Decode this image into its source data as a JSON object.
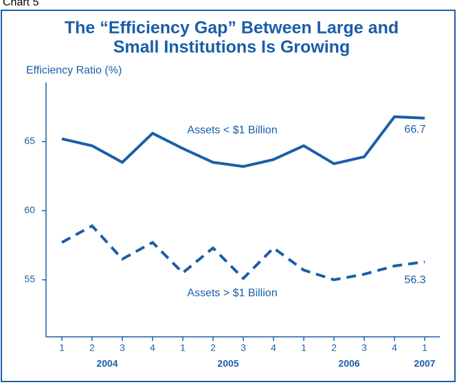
{
  "chart_data": {
    "type": "line",
    "chart_label": "Chart 5",
    "title_lines": [
      "The “Efficiency Gap” Between Large and",
      "Small Institutions Is Growing"
    ],
    "y_axis_label": "Efficiency Ratio (%)",
    "categories": [
      "1",
      "2",
      "3",
      "4",
      "1",
      "2",
      "3",
      "4",
      "1",
      "2",
      "3",
      "4",
      "1"
    ],
    "year_labels": [
      "2004",
      "2005",
      "2006",
      "2007"
    ],
    "series": [
      {
        "name": "Assets < $1 Billion",
        "color": "#1a5ea8",
        "dashed": false,
        "values": [
          65.2,
          64.7,
          63.5,
          65.6,
          64.5,
          63.5,
          63.2,
          63.7,
          64.7,
          63.4,
          63.9,
          66.8,
          66.7
        ]
      },
      {
        "name": "Assets > $1 Billion",
        "color": "#1a5ea8",
        "dashed": true,
        "values": [
          57.7,
          58.9,
          56.5,
          57.7,
          55.5,
          57.3,
          55.1,
          57.3,
          55.7,
          55.0,
          55.4,
          56.0,
          56.3
        ]
      }
    ],
    "ylim": [
      51,
      69
    ],
    "yticks": [
      55,
      60,
      65
    ]
  }
}
